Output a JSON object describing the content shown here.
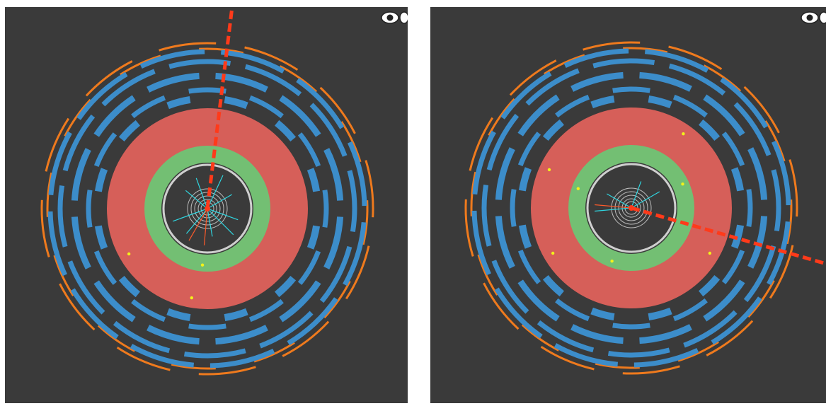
{
  "colors": {
    "background": "#3a3a3a",
    "calorimeter_hadronic": "#d65f59",
    "calorimeter_em": "#73bf73",
    "muon_chambers": "#3c8dca",
    "muon_outer": "#ef7a1d",
    "tracker_ring": "#cfcfcf",
    "tracks": "#2fd6e0",
    "deposits": "#f2f21a",
    "jet_line": "#ff3a1a"
  },
  "icons": {
    "view_toggle": "eye-icon"
  },
  "events": [
    {
      "id": "left",
      "jet_angle_deg": -83,
      "tracks_deg": [
        -140,
        -110,
        -65,
        -30,
        20,
        45,
        80,
        130,
        160
      ],
      "red_tracks_deg": [
        95,
        120
      ],
      "deposits_deg": [
        100,
        95,
        150
      ]
    },
    {
      "id": "right",
      "jet_angle_deg": 16,
      "tracks_deg": [
        -70,
        -30,
        175,
        -150
      ],
      "red_tracks_deg": [
        185
      ],
      "deposits_deg": [
        -55,
        -25,
        30,
        110,
        150,
        200,
        205
      ]
    }
  ]
}
